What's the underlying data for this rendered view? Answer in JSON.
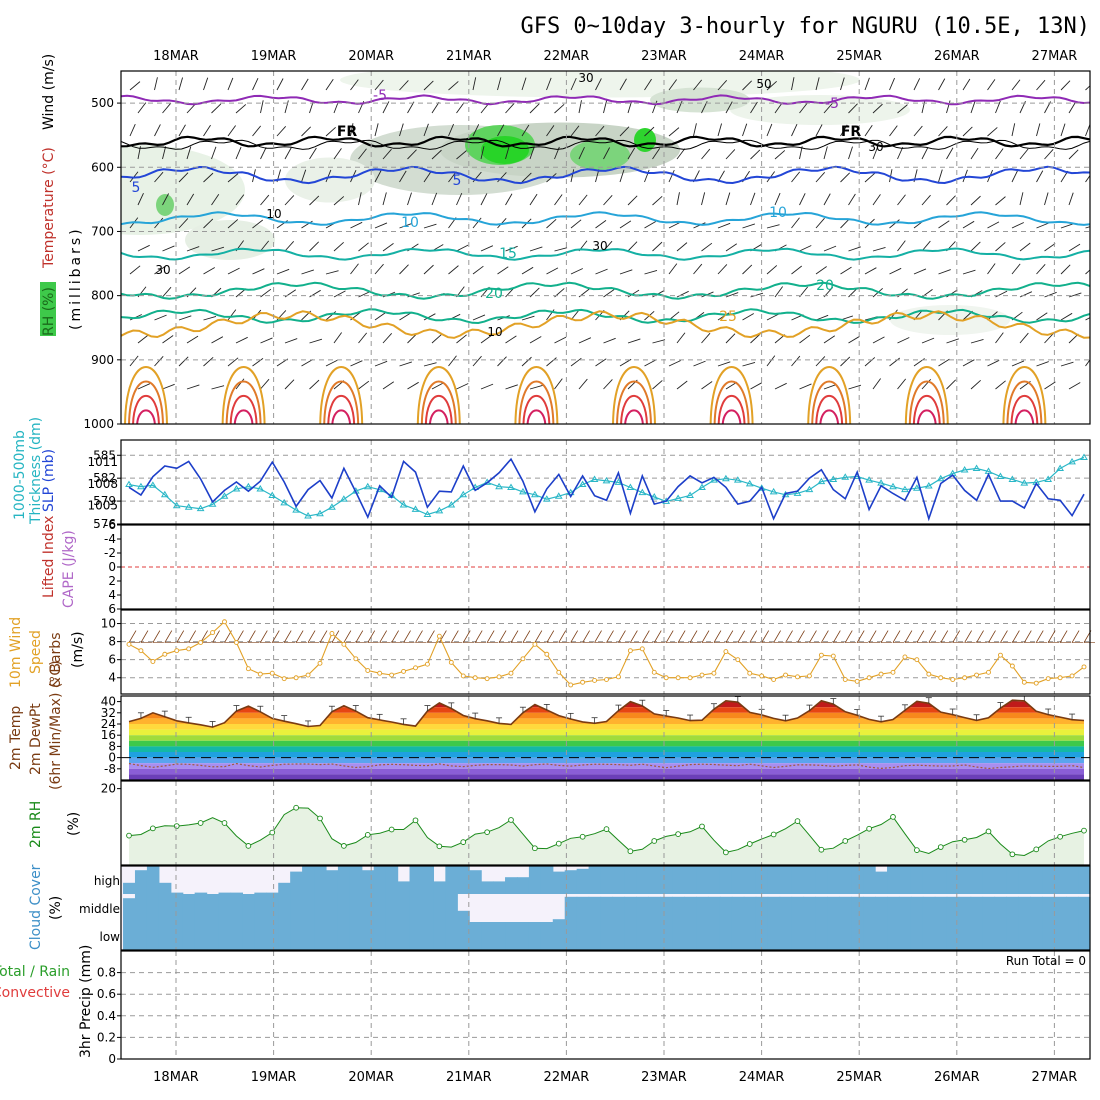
{
  "title": "GFS 0~10day 3-hourly for NGURU (10.5E, 13N)",
  "dates": [
    "18MAR",
    "19MAR",
    "20MAR",
    "21MAR",
    "22MAR",
    "23MAR",
    "24MAR",
    "25MAR",
    "26MAR",
    "27MAR"
  ],
  "run_total_label": "Run Total = 0",
  "colors": {
    "purple": "#8f2ab5",
    "blue": "#2346d6",
    "cyan": "#26b5c2",
    "teal": "#12b08c",
    "orange": "#e2a126",
    "red": "#e03c3c",
    "green": "#2a9e2a",
    "cloud": "#6baed6"
  },
  "chart_data": [
    {
      "id": "upper",
      "type": "contour",
      "ylabel_parts": [
        "RH (%)",
        "Temperature (°C)",
        "Wind (m/s)",
        "(millibars)"
      ],
      "yticks": [
        500,
        600,
        700,
        800,
        900,
        1000
      ],
      "ylim": [
        1000,
        450
      ],
      "isotherm_labels": [
        {
          "text": "-5",
          "level": -5,
          "color": "#8f2ab5"
        },
        {
          "text": "FR",
          "level": 0,
          "color": "#000000"
        },
        {
          "text": "5",
          "level": 5,
          "color": "#2346d6"
        },
        {
          "text": "10",
          "level": 10,
          "color": "#26a4d8"
        },
        {
          "text": "15",
          "level": 15,
          "color": "#14b0a4"
        },
        {
          "text": "20",
          "level": 20,
          "color": "#12b08c"
        },
        {
          "text": "25",
          "level": 25,
          "color": "#e2a126"
        }
      ],
      "rh_labels": [
        "30",
        "10",
        "50"
      ]
    },
    {
      "id": "thick_slp",
      "type": "line",
      "ylabel_parts": [
        "1000-500mb",
        "Thickness (dm)",
        "SLP (mb)"
      ],
      "left_ticks": [
        "585",
        "582",
        "579",
        "576"
      ],
      "right_ticks": [
        "1011",
        "1008",
        "1005"
      ],
      "ylim_thickness": [
        576,
        587
      ],
      "ylim_slp": [
        1002.5,
        1014
      ],
      "series": [
        {
          "name": "Thickness (dm)",
          "color": "#1d3fc9",
          "values": [
            580.8,
            579.8,
            582.2,
            583.6,
            583.3,
            584.2,
            581.9,
            578.9,
            580.4,
            581.5,
            580.3,
            581.6,
            584.1,
            581.5,
            578.3,
            580.5,
            581.7,
            579.4,
            583.3,
            580.2,
            576.9,
            581.0,
            579.5,
            584.2,
            582.8,
            578.2,
            580.3,
            580.2,
            583.6,
            580.4,
            581.4,
            582.7,
            584.5,
            581.6,
            577.6,
            580.6,
            582.5,
            579.6,
            582.3,
            579.7,
            579.1,
            582.7,
            577.4,
            582.3,
            578.6,
            579.0,
            580.9,
            582.3,
            581.4,
            582.1,
            580.8,
            578.6,
            579.0,
            580.8,
            576.7,
            580.0,
            580.3,
            582.0,
            583.1,
            580.5,
            579.3,
            582.8,
            577.9,
            581.0,
            580.0,
            579.1,
            582.1,
            576.7,
            581.3,
            582.4,
            580.4,
            579.1,
            582.5,
            579.0,
            579.0,
            578.1,
            581.3,
            579.3,
            579.1,
            577.1,
            579.9
          ]
        },
        {
          "name": "SLP (mb)",
          "color": "#2ab7c7",
          "values": [
            1007.9,
            1007.6,
            1007.8,
            1006.5,
            1005.0,
            1004.8,
            1004.6,
            1005.2,
            1006.3,
            1007.3,
            1007.6,
            1007.3,
            1006.4,
            1005.4,
            1004.4,
            1003.6,
            1003.9,
            1004.8,
            1005.9,
            1007.0,
            1007.6,
            1007.2,
            1006.4,
            1005.1,
            1004.5,
            1003.8,
            1004.3,
            1005.1,
            1006.5,
            1007.5,
            1008.2,
            1007.6,
            1007.5,
            1006.9,
            1006.5,
            1005.9,
            1006.3,
            1006.8,
            1007.9,
            1008.6,
            1008.4,
            1008.2,
            1007.5,
            1006.8,
            1006.2,
            1005.6,
            1006.0,
            1006.4,
            1007.5,
            1008.5,
            1008.7,
            1008.5,
            1008.0,
            1007.4,
            1006.9,
            1006.5,
            1006.7,
            1007.2,
            1008.3,
            1008.6,
            1008.9,
            1009.0,
            1008.5,
            1008.1,
            1007.6,
            1007.2,
            1007.4,
            1007.7,
            1008.7,
            1009.4,
            1009.9,
            1010.1,
            1009.7,
            1009.0,
            1008.6,
            1008.1,
            1008.2,
            1008.6,
            1010.1,
            1011.0,
            1011.6
          ]
        }
      ]
    },
    {
      "id": "li_cape",
      "type": "line",
      "ylabel_parts": [
        "Lifted Index",
        "CAPE (J/kg)"
      ],
      "yticks": [
        "-6",
        "-4",
        "-2",
        "0",
        "2",
        "4",
        "6"
      ],
      "ylim": [
        -6,
        6
      ],
      "series": [
        {
          "name": "Lifted Index zero line",
          "color": "#e03c3c",
          "values": [
            0
          ]
        }
      ]
    },
    {
      "id": "wind10m",
      "type": "line",
      "ylabel_parts": [
        "10m Wind",
        "Speed",
        "& Barbs",
        "(m/s)"
      ],
      "yticks": [
        "10",
        "8",
        "6",
        "4"
      ],
      "ylim": [
        2.2,
        11.5
      ],
      "series": [
        {
          "name": "10m Wind Speed",
          "color": "#e2a126",
          "values": [
            7.7,
            7.0,
            5.8,
            6.6,
            7.0,
            7.2,
            7.9,
            9.0,
            10.2,
            7.9,
            5.0,
            4.4,
            4.5,
            3.9,
            4.0,
            4.3,
            5.6,
            8.9,
            7.7,
            6.1,
            4.8,
            4.5,
            4.3,
            4.7,
            5.1,
            5.5,
            8.6,
            5.7,
            4.2,
            4.0,
            3.9,
            4.1,
            4.5,
            6.1,
            7.7,
            6.6,
            4.6,
            3.2,
            3.5,
            3.7,
            3.8,
            4.1,
            7.0,
            7.2,
            4.6,
            4.0,
            4.0,
            4.0,
            4.3,
            4.5,
            6.9,
            6.0,
            4.5,
            4.2,
            3.8,
            4.3,
            4.1,
            4.2,
            6.5,
            6.4,
            3.8,
            3.6,
            4.0,
            4.4,
            4.6,
            6.3,
            6.0,
            4.4,
            4.0,
            3.8,
            4.0,
            4.3,
            4.6,
            6.5,
            5.3,
            3.5,
            3.4,
            3.9,
            4.0,
            4.2,
            5.2
          ]
        }
      ]
    },
    {
      "id": "temp2m",
      "type": "area",
      "ylabel_parts": [
        "2m Temp",
        "2m DewPt",
        "(6hr Min/Max) (°C)"
      ],
      "yticks": [
        "40",
        "32",
        "24",
        "16",
        "8",
        "0",
        "-8"
      ],
      "ylim": [
        -16,
        44
      ],
      "series": [
        {
          "name": "2m Temp",
          "color": "#7a3b12",
          "values": [
            25.7,
            28.0,
            32.0,
            29.2,
            26.3,
            24.8,
            23.4,
            21.8,
            24.9,
            33.2,
            36.8,
            32.7,
            28.0,
            26.0,
            24.2,
            22.2,
            22.9,
            32.7,
            37.1,
            33.2,
            28.5,
            26.9,
            25.4,
            23.7,
            22.5,
            33.2,
            39.1,
            35.1,
            30.1,
            27.8,
            26.3,
            24.4,
            23.7,
            32.0,
            37.9,
            34.0,
            30.0,
            27.6,
            25.5,
            24.5,
            25.8,
            33.5,
            39.9,
            37.0,
            31.2,
            29.7,
            28.3,
            26.4,
            26.7,
            34.5,
            40.6,
            39.6,
            32.3,
            30.5,
            28.0,
            26.3,
            28.3,
            33.5,
            40.6,
            38.2,
            32.7,
            30.3,
            27.3,
            25.6,
            27.2,
            33.7,
            40.2,
            38.8,
            32.5,
            30.7,
            28.6,
            26.6,
            28.4,
            35.3,
            41.0,
            40.5,
            33.1,
            30.7,
            28.9,
            27.1,
            26.5
          ]
        },
        {
          "name": "2m DewPt",
          "color": "#a05a3c",
          "values": [
            -4.2,
            -5.7,
            -6.9,
            -5.9,
            -4.6,
            -4.8,
            -5.6,
            -6.6,
            -6.4,
            -4.3,
            -5.7,
            -6.7,
            -5.6,
            -4.7,
            -4.6,
            -4.6,
            -5.0,
            -4.6,
            -5.9,
            -7.1,
            -6.4,
            -5.2,
            -4.8,
            -5.1,
            -5.6,
            -5.7,
            -4.5,
            -5.9,
            -6.4,
            -5.6,
            -5.0,
            -5.0,
            -5.3,
            -6.1,
            -5.1,
            -4.6,
            -5.6,
            -6.1,
            -5.3,
            -4.7,
            -4.8,
            -5.0,
            -5.5,
            -4.7,
            -6.0,
            -7.2,
            -6.1,
            -5.0,
            -4.7,
            -4.9,
            -5.4,
            -5.8,
            -4.7,
            -5.9,
            -7.1,
            -6.2,
            -5.2,
            -5.2,
            -5.5,
            -6.3,
            -5.6,
            -5.2,
            -6.8,
            -7.7,
            -7.1,
            -5.8,
            -5.4,
            -5.8,
            -6.1,
            -6.0,
            -5.3,
            -6.7,
            -7.8,
            -7.1,
            -6.6,
            -5.9,
            -6.1,
            -6.3,
            -6.3,
            -5.8,
            -7.1
          ]
        }
      ],
      "colorbands": [
        {
          "from": 40,
          "to": 44,
          "color": "#8b0000"
        },
        {
          "from": 36,
          "to": 40,
          "color": "#c01a1a"
        },
        {
          "from": 32,
          "to": 36,
          "color": "#e64513"
        },
        {
          "from": 28,
          "to": 32,
          "color": "#f7881c"
        },
        {
          "from": 24,
          "to": 28,
          "color": "#ffb22e"
        },
        {
          "from": 20,
          "to": 24,
          "color": "#ffd93d"
        },
        {
          "from": 16,
          "to": 20,
          "color": "#e9f13c"
        },
        {
          "from": 12,
          "to": 16,
          "color": "#9fdc3c"
        },
        {
          "from": 8,
          "to": 12,
          "color": "#3ec94a"
        },
        {
          "from": 4,
          "to": 8,
          "color": "#14b8a6"
        },
        {
          "from": 0,
          "to": 4,
          "color": "#1fa1e0"
        },
        {
          "from": -4,
          "to": 0,
          "color": "#5aa4ee"
        },
        {
          "from": -8,
          "to": -4,
          "color": "#a98ef0"
        },
        {
          "from": -12,
          "to": -8,
          "color": "#8a5ed6"
        },
        {
          "from": -16,
          "to": -12,
          "color": "#6b3fb8"
        }
      ]
    },
    {
      "id": "rh2m",
      "type": "line",
      "ylabel_parts": [
        "2m RH",
        "(%)"
      ],
      "yticks": [
        "20"
      ],
      "ylim": [
        0,
        22
      ],
      "series": [
        {
          "name": "2m RH",
          "color": "#1a8a1a",
          "values": [
            7.7,
            8.0,
            9.6,
            10.3,
            10.2,
            10.5,
            11.0,
            12.4,
            11.0,
            7.6,
            5.0,
            6.5,
            8.5,
            13.2,
            15.0,
            14.9,
            12.2,
            6.9,
            5.0,
            5.9,
            7.9,
            8.3,
            9.3,
            9.3,
            11.7,
            7.2,
            4.9,
            4.7,
            6.0,
            8.1,
            8.6,
            9.8,
            11.8,
            8.1,
            4.4,
            4.3,
            5.6,
            7.0,
            7.4,
            8.2,
            9.4,
            6.5,
            3.6,
            4.1,
            6.3,
            7.5,
            8.1,
            8.7,
            10.1,
            6.5,
            3.3,
            4.0,
            5.5,
            6.8,
            8.0,
            9.5,
            11.5,
            7.8,
            4.0,
            4.4,
            6.3,
            7.8,
            9.5,
            10.6,
            12.6,
            8.2,
            3.9,
            3.0,
            4.7,
            6.1,
            6.6,
            7.2,
            8.8,
            5.5,
            2.8,
            2.5,
            4.1,
            6.3,
            7.4,
            8.3,
            9.0
          ]
        }
      ]
    },
    {
      "id": "cloud",
      "type": "bar",
      "ylabel_parts": [
        "Cloud Cover",
        "(%)"
      ],
      "yticks": [
        "high",
        "middle",
        "low"
      ],
      "series": [
        {
          "name": "high",
          "values": [
            40,
            85,
            100,
            40,
            5,
            0,
            5,
            0,
            5,
            5,
            0,
            5,
            5,
            40,
            80,
            100,
            100,
            85,
            100,
            100,
            85,
            100,
            100,
            45,
            100,
            100,
            45,
            100,
            100,
            85,
            45,
            45,
            60,
            60,
            100,
            100,
            80,
            85,
            90,
            100,
            100,
            100,
            100,
            100,
            100,
            100,
            100,
            100,
            100,
            100,
            100,
            100,
            100,
            100,
            100,
            100,
            100,
            100,
            100,
            100,
            100,
            100,
            100,
            80,
            100,
            100,
            100,
            100,
            100,
            100,
            100,
            100,
            100,
            100,
            100,
            100,
            100,
            100,
            100,
            100,
            100
          ]
        },
        {
          "name": "middle",
          "values": [
            85,
            100,
            100,
            100,
            100,
            100,
            100,
            100,
            100,
            100,
            100,
            100,
            100,
            100,
            100,
            100,
            100,
            100,
            100,
            100,
            100,
            100,
            100,
            100,
            100,
            100,
            100,
            100,
            40,
            0,
            0,
            0,
            0,
            0,
            0,
            0,
            10,
            90,
            90,
            90,
            90,
            90,
            90,
            90,
            90,
            90,
            90,
            90,
            90,
            90,
            90,
            90,
            90,
            90,
            90,
            90,
            90,
            90,
            90,
            90,
            90,
            90,
            90,
            90,
            90,
            90,
            90,
            90,
            90,
            90,
            90,
            90,
            90,
            90,
            90,
            90,
            90,
            90,
            90,
            90,
            90
          ]
        },
        {
          "name": "low",
          "values": [
            100,
            100,
            100,
            100,
            100,
            100,
            100,
            100,
            100,
            100,
            100,
            100,
            100,
            100,
            100,
            100,
            100,
            100,
            100,
            100,
            100,
            100,
            100,
            100,
            100,
            100,
            100,
            100,
            100,
            100,
            100,
            100,
            100,
            100,
            100,
            100,
            100,
            100,
            100,
            100,
            100,
            100,
            100,
            100,
            100,
            100,
            100,
            100,
            100,
            100,
            100,
            100,
            100,
            100,
            100,
            100,
            100,
            100,
            100,
            100,
            100,
            100,
            100,
            100,
            100,
            100,
            100,
            100,
            100,
            100,
            100,
            100,
            100,
            100,
            100,
            100,
            100,
            100,
            100,
            100,
            100
          ]
        }
      ]
    },
    {
      "id": "precip",
      "type": "bar",
      "ylabel_parts": [
        "Total / Rain",
        "Convective",
        "3hr Precip (mm)"
      ],
      "yticks": [
        "0.8",
        "0.6",
        "0.4",
        "0.2",
        "0"
      ],
      "ylim": [
        0,
        1
      ],
      "series": [
        {
          "name": "3hr Precip",
          "values": [
            0
          ]
        }
      ]
    }
  ]
}
